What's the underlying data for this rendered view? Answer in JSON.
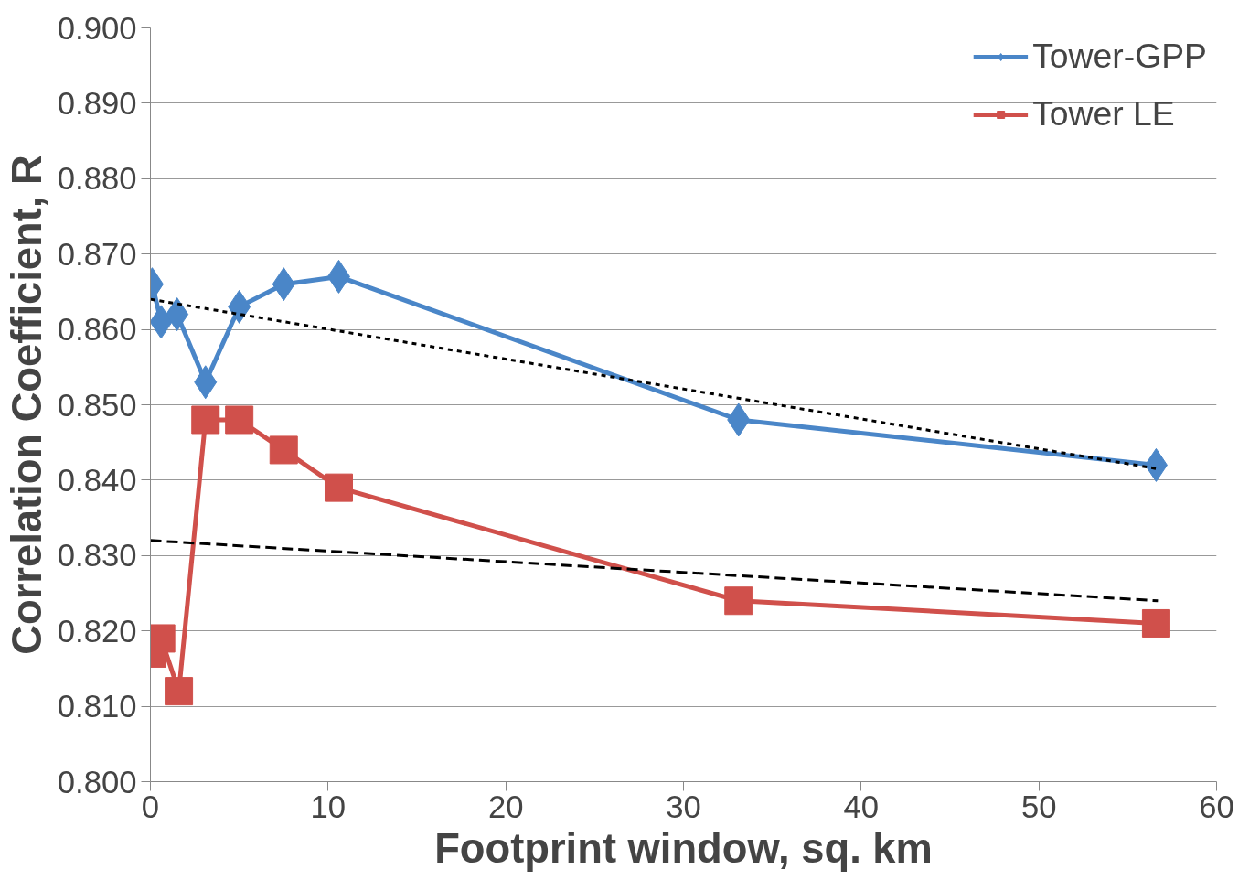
{
  "chart_data": {
    "type": "line",
    "xlabel": "Footprint window, sq. km",
    "ylabel": "Correlation Coefficient, R",
    "xlim": [
      0,
      60
    ],
    "xticks": [
      0,
      10,
      20,
      30,
      40,
      50,
      60
    ],
    "ylim": [
      0.8,
      0.9
    ],
    "yticks": [
      {
        "value": 0.8,
        "label": "0.800"
      },
      {
        "value": 0.81,
        "label": "0.810"
      },
      {
        "value": 0.82,
        "label": "0.820"
      },
      {
        "value": 0.83,
        "label": "0.830"
      },
      {
        "value": 0.84,
        "label": "0.840"
      },
      {
        "value": 0.85,
        "label": "0.850"
      },
      {
        "value": 0.86,
        "label": "0.860"
      },
      {
        "value": 0.87,
        "label": "0.870"
      },
      {
        "value": 0.88,
        "label": "0.880"
      },
      {
        "value": 0.89,
        "label": "0.890"
      },
      {
        "value": 0.9,
        "label": "0.900"
      }
    ],
    "grid": "y",
    "legend": "top right",
    "series": [
      {
        "name": "Tower-GPP",
        "color": "#4a86c8",
        "marker": "diamond",
        "line_style": "solid",
        "x": [
          0.1,
          0.6,
          1.5,
          3.1,
          5.0,
          7.5,
          10.6,
          33.1,
          56.6
        ],
        "values": [
          0.866,
          0.861,
          0.862,
          0.853,
          0.863,
          0.866,
          0.867,
          0.848,
          0.842
        ]
      },
      {
        "name": "Tower LE",
        "color": "#d0504b",
        "marker": "square",
        "line_style": "solid",
        "x": [
          0.1,
          0.6,
          1.6,
          3.1,
          5.0,
          7.5,
          10.6,
          33.1,
          56.6
        ],
        "values": [
          0.817,
          0.819,
          0.812,
          0.848,
          0.848,
          0.844,
          0.839,
          0.824,
          0.821
        ]
      },
      {
        "color": "#000000",
        "marker": "none",
        "line_style": "dotted",
        "x": [
          0,
          56.7
        ],
        "values": [
          0.864,
          0.8415
        ]
      },
      {
        "color": "#000000",
        "marker": "none",
        "line_style": "dashed",
        "x": [
          0,
          56.7
        ],
        "values": [
          0.832,
          0.824
        ]
      }
    ]
  }
}
